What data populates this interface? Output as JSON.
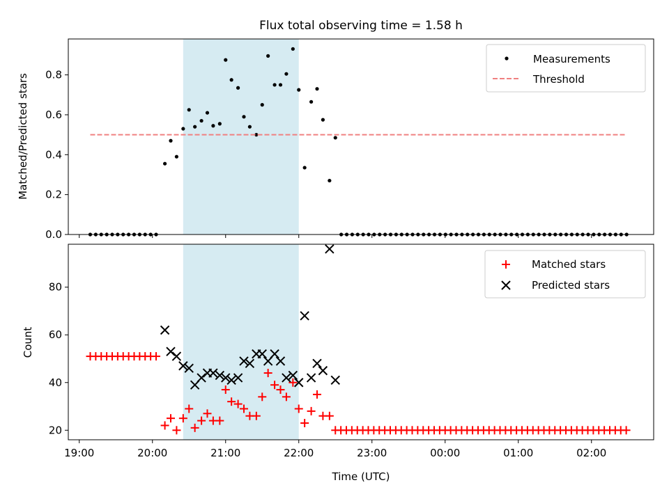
{
  "chart_data": [
    {
      "type": "scatter",
      "title": "Flux total observing time = 1.58 h",
      "xlabel": "",
      "ylabel": "Matched/Predicted stars",
      "xlim": [
        18.85,
        26.85
      ],
      "ylim": [
        0,
        0.98
      ],
      "x_ticks": [
        19,
        20,
        21,
        22,
        23,
        24,
        25,
        26
      ],
      "y_ticks": [
        0.0,
        0.2,
        0.4,
        0.6,
        0.8
      ],
      "y_tick_labels": [
        "0.0",
        "0.2",
        "0.4",
        "0.6",
        "0.8"
      ],
      "shaded_span": [
        20.42,
        22.0
      ],
      "legend": "top-right",
      "series": [
        {
          "name": "Measurements",
          "marker": "dot",
          "color": "#000000",
          "points": [
            [
              19.15,
              0
            ],
            [
              19.225,
              0
            ],
            [
              19.3,
              0
            ],
            [
              19.375,
              0
            ],
            [
              19.45,
              0
            ],
            [
              19.525,
              0
            ],
            [
              19.6,
              0
            ],
            [
              19.675,
              0
            ],
            [
              19.75,
              0
            ],
            [
              19.825,
              0
            ],
            [
              19.9,
              0
            ],
            [
              19.975,
              0
            ],
            [
              20.05,
              0
            ],
            [
              20.17,
              0.355
            ],
            [
              20.25,
              0.47
            ],
            [
              20.33,
              0.39
            ],
            [
              20.42,
              0.53
            ],
            [
              20.5,
              0.625
            ],
            [
              20.58,
              0.54
            ],
            [
              20.67,
              0.57
            ],
            [
              20.75,
              0.61
            ],
            [
              20.83,
              0.545
            ],
            [
              20.92,
              0.555
            ],
            [
              21.0,
              0.875
            ],
            [
              21.08,
              0.775
            ],
            [
              21.17,
              0.735
            ],
            [
              21.25,
              0.59
            ],
            [
              21.33,
              0.54
            ],
            [
              21.42,
              0.5
            ],
            [
              21.5,
              0.65
            ],
            [
              21.58,
              0.895
            ],
            [
              21.67,
              0.75
            ],
            [
              21.75,
              0.75
            ],
            [
              21.83,
              0.805
            ],
            [
              21.92,
              0.93
            ],
            [
              22.0,
              0.725
            ],
            [
              22.08,
              0.335
            ],
            [
              22.17,
              0.665
            ],
            [
              22.25,
              0.73
            ],
            [
              22.33,
              0.575
            ],
            [
              22.42,
              0.27
            ],
            [
              22.5,
              0.485
            ],
            [
              22.58,
              0
            ],
            [
              22.655,
              0
            ],
            [
              22.73,
              0
            ],
            [
              22.805,
              0
            ],
            [
              22.88,
              0
            ],
            [
              22.955,
              0
            ],
            [
              23.03,
              0
            ],
            [
              23.105,
              0
            ],
            [
              23.18,
              0
            ],
            [
              23.255,
              0
            ],
            [
              23.33,
              0
            ],
            [
              23.405,
              0
            ],
            [
              23.48,
              0
            ],
            [
              23.555,
              0
            ],
            [
              23.63,
              0
            ],
            [
              23.705,
              0
            ],
            [
              23.78,
              0
            ],
            [
              23.855,
              0
            ],
            [
              23.93,
              0
            ],
            [
              24.005,
              0
            ],
            [
              24.08,
              0
            ],
            [
              24.155,
              0
            ],
            [
              24.23,
              0
            ],
            [
              24.305,
              0
            ],
            [
              24.38,
              0
            ],
            [
              24.455,
              0
            ],
            [
              24.53,
              0
            ],
            [
              24.605,
              0
            ],
            [
              24.68,
              0
            ],
            [
              24.755,
              0
            ],
            [
              24.83,
              0
            ],
            [
              24.905,
              0
            ],
            [
              24.98,
              0
            ],
            [
              25.055,
              0
            ],
            [
              25.13,
              0
            ],
            [
              25.205,
              0
            ],
            [
              25.28,
              0
            ],
            [
              25.355,
              0
            ],
            [
              25.43,
              0
            ],
            [
              25.505,
              0
            ],
            [
              25.58,
              0
            ],
            [
              25.655,
              0
            ],
            [
              25.73,
              0
            ],
            [
              25.805,
              0
            ],
            [
              25.88,
              0
            ],
            [
              25.955,
              0
            ],
            [
              26.03,
              0
            ],
            [
              26.105,
              0
            ],
            [
              26.18,
              0
            ],
            [
              26.255,
              0
            ],
            [
              26.33,
              0
            ],
            [
              26.405,
              0
            ],
            [
              26.48,
              0
            ]
          ]
        },
        {
          "name": "Threshold",
          "line": "dashed",
          "color": "#f08080",
          "points": [
            [
              19.15,
              0.5
            ],
            [
              26.48,
              0.5
            ]
          ]
        }
      ]
    },
    {
      "type": "scatter",
      "title": "",
      "xlabel": "Time (UTC)",
      "ylabel": "Count",
      "xlim": [
        18.85,
        26.85
      ],
      "ylim": [
        16,
        98
      ],
      "x_ticks": [
        19,
        20,
        21,
        22,
        23,
        24,
        25,
        26
      ],
      "x_tick_labels": [
        "19:00",
        "20:00",
        "21:00",
        "22:00",
        "23:00",
        "00:00",
        "01:00",
        "02:00"
      ],
      "y_ticks": [
        20,
        40,
        60,
        80
      ],
      "y_tick_labels": [
        "20",
        "40",
        "60",
        "80"
      ],
      "shaded_span": [
        20.42,
        22.0
      ],
      "legend": "top-right",
      "series": [
        {
          "name": "Matched stars",
          "marker": "plus",
          "color": "#ff0000",
          "points": [
            [
              19.15,
              51
            ],
            [
              19.225,
              51
            ],
            [
              19.3,
              51
            ],
            [
              19.375,
              51
            ],
            [
              19.45,
              51
            ],
            [
              19.525,
              51
            ],
            [
              19.6,
              51
            ],
            [
              19.675,
              51
            ],
            [
              19.75,
              51
            ],
            [
              19.825,
              51
            ],
            [
              19.9,
              51
            ],
            [
              19.975,
              51
            ],
            [
              20.05,
              51
            ],
            [
              20.17,
              22
            ],
            [
              20.25,
              25
            ],
            [
              20.33,
              20
            ],
            [
              20.42,
              25
            ],
            [
              20.5,
              29
            ],
            [
              20.58,
              21
            ],
            [
              20.67,
              24
            ],
            [
              20.75,
              27
            ],
            [
              20.83,
              24
            ],
            [
              20.92,
              24
            ],
            [
              21.0,
              37
            ],
            [
              21.08,
              32
            ],
            [
              21.17,
              31
            ],
            [
              21.25,
              29
            ],
            [
              21.33,
              26
            ],
            [
              21.42,
              26
            ],
            [
              21.5,
              34
            ],
            [
              21.58,
              44
            ],
            [
              21.67,
              39
            ],
            [
              21.75,
              37
            ],
            [
              21.83,
              34
            ],
            [
              21.92,
              40
            ],
            [
              22.0,
              29
            ],
            [
              22.08,
              23
            ],
            [
              22.17,
              28
            ],
            [
              22.25,
              35
            ],
            [
              22.33,
              26
            ],
            [
              22.42,
              26
            ],
            [
              22.5,
              20
            ],
            [
              22.575,
              20
            ],
            [
              22.65,
              20
            ],
            [
              22.725,
              20
            ],
            [
              22.8,
              20
            ],
            [
              22.875,
              20
            ],
            [
              22.95,
              20
            ],
            [
              23.025,
              20
            ],
            [
              23.1,
              20
            ],
            [
              23.175,
              20
            ],
            [
              23.25,
              20
            ],
            [
              23.325,
              20
            ],
            [
              23.4,
              20
            ],
            [
              23.475,
              20
            ],
            [
              23.55,
              20
            ],
            [
              23.625,
              20
            ],
            [
              23.7,
              20
            ],
            [
              23.775,
              20
            ],
            [
              23.85,
              20
            ],
            [
              23.925,
              20
            ],
            [
              24.0,
              20
            ],
            [
              24.075,
              20
            ],
            [
              24.15,
              20
            ],
            [
              24.225,
              20
            ],
            [
              24.3,
              20
            ],
            [
              24.375,
              20
            ],
            [
              24.45,
              20
            ],
            [
              24.525,
              20
            ],
            [
              24.6,
              20
            ],
            [
              24.675,
              20
            ],
            [
              24.75,
              20
            ],
            [
              24.825,
              20
            ],
            [
              24.9,
              20
            ],
            [
              24.975,
              20
            ],
            [
              25.05,
              20
            ],
            [
              25.125,
              20
            ],
            [
              25.2,
              20
            ],
            [
              25.275,
              20
            ],
            [
              25.35,
              20
            ],
            [
              25.425,
              20
            ],
            [
              25.5,
              20
            ],
            [
              25.575,
              20
            ],
            [
              25.65,
              20
            ],
            [
              25.725,
              20
            ],
            [
              25.8,
              20
            ],
            [
              25.875,
              20
            ],
            [
              25.95,
              20
            ],
            [
              26.025,
              20
            ],
            [
              26.1,
              20
            ],
            [
              26.175,
              20
            ],
            [
              26.25,
              20
            ],
            [
              26.325,
              20
            ],
            [
              26.4,
              20
            ],
            [
              26.475,
              20
            ]
          ]
        },
        {
          "name": "Predicted stars",
          "marker": "x",
          "color": "#000000",
          "points": [
            [
              20.17,
              62
            ],
            [
              20.25,
              53
            ],
            [
              20.33,
              51
            ],
            [
              20.42,
              47
            ],
            [
              20.5,
              46
            ],
            [
              20.58,
              39
            ],
            [
              20.67,
              42
            ],
            [
              20.75,
              44
            ],
            [
              20.83,
              44
            ],
            [
              20.92,
              43
            ],
            [
              21.0,
              42
            ],
            [
              21.08,
              41
            ],
            [
              21.17,
              42
            ],
            [
              21.25,
              49
            ],
            [
              21.33,
              48
            ],
            [
              21.42,
              52
            ],
            [
              21.5,
              52
            ],
            [
              21.58,
              49
            ],
            [
              21.67,
              52
            ],
            [
              21.75,
              49
            ],
            [
              21.83,
              42
            ],
            [
              21.92,
              43
            ],
            [
              22.0,
              40
            ],
            [
              22.08,
              68
            ],
            [
              22.17,
              42
            ],
            [
              22.25,
              48
            ],
            [
              22.33,
              45
            ],
            [
              22.42,
              96
            ],
            [
              22.5,
              41
            ]
          ]
        }
      ]
    }
  ],
  "colors": {
    "shade": "#add8e6",
    "matched": "#ff0000",
    "predicted": "#000000",
    "threshold": "#f08080"
  }
}
